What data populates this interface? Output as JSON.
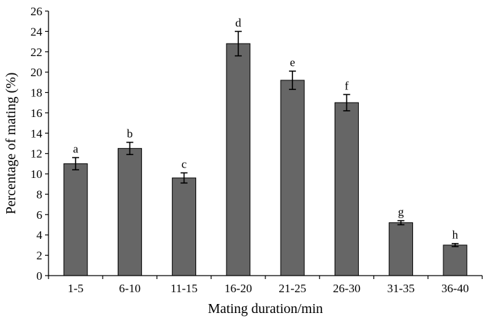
{
  "chart_data": {
    "type": "bar",
    "title": "",
    "xlabel": "Mating duration/min",
    "ylabel": "Percentage of mating (%)",
    "ylim": [
      0,
      26
    ],
    "yticks": [
      0,
      2,
      4,
      6,
      8,
      10,
      12,
      14,
      16,
      18,
      20,
      22,
      24,
      26
    ],
    "categories": [
      "1-5",
      "6-10",
      "11-15",
      "16-20",
      "21-25",
      "26-30",
      "31-35",
      "36-40"
    ],
    "values": [
      11.0,
      12.5,
      9.6,
      22.8,
      19.2,
      17.0,
      5.2,
      3.0
    ],
    "errors": [
      0.6,
      0.6,
      0.5,
      1.2,
      0.9,
      0.8,
      0.2,
      0.15
    ],
    "labels": [
      "a",
      "b",
      "c",
      "d",
      "e",
      "f",
      "g",
      "h"
    ],
    "bar_color": "#666666",
    "grid": false,
    "legend": "none"
  }
}
